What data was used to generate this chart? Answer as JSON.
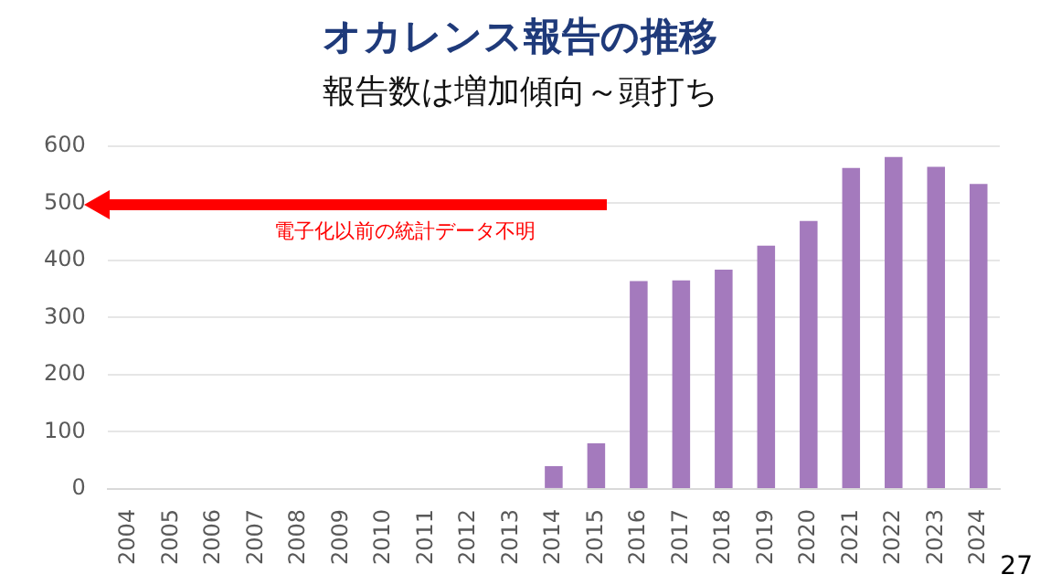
{
  "chart_data": {
    "type": "bar",
    "title": "オカレンス報告の推移",
    "subtitle": "報告数は増加傾向～頭打ち",
    "categories": [
      "2004",
      "2005",
      "2006",
      "2007",
      "2008",
      "2009",
      "2010",
      "2011",
      "2012",
      "2013",
      "2014",
      "2015",
      "2016",
      "2017",
      "2018",
      "2019",
      "2020",
      "2021",
      "2022",
      "2023",
      "2024"
    ],
    "values": [
      0,
      0,
      0,
      0,
      0,
      0,
      0,
      0,
      0,
      0,
      40,
      80,
      364,
      365,
      384,
      426,
      469,
      562,
      581,
      564,
      534
    ],
    "color": "#a47abd",
    "ylim": [
      0,
      600
    ],
    "yticks": [
      0,
      100,
      200,
      300,
      400,
      500,
      600
    ],
    "grid": "y",
    "annotations": [
      "電子化以前の統計データ不明",
      "27"
    ]
  }
}
